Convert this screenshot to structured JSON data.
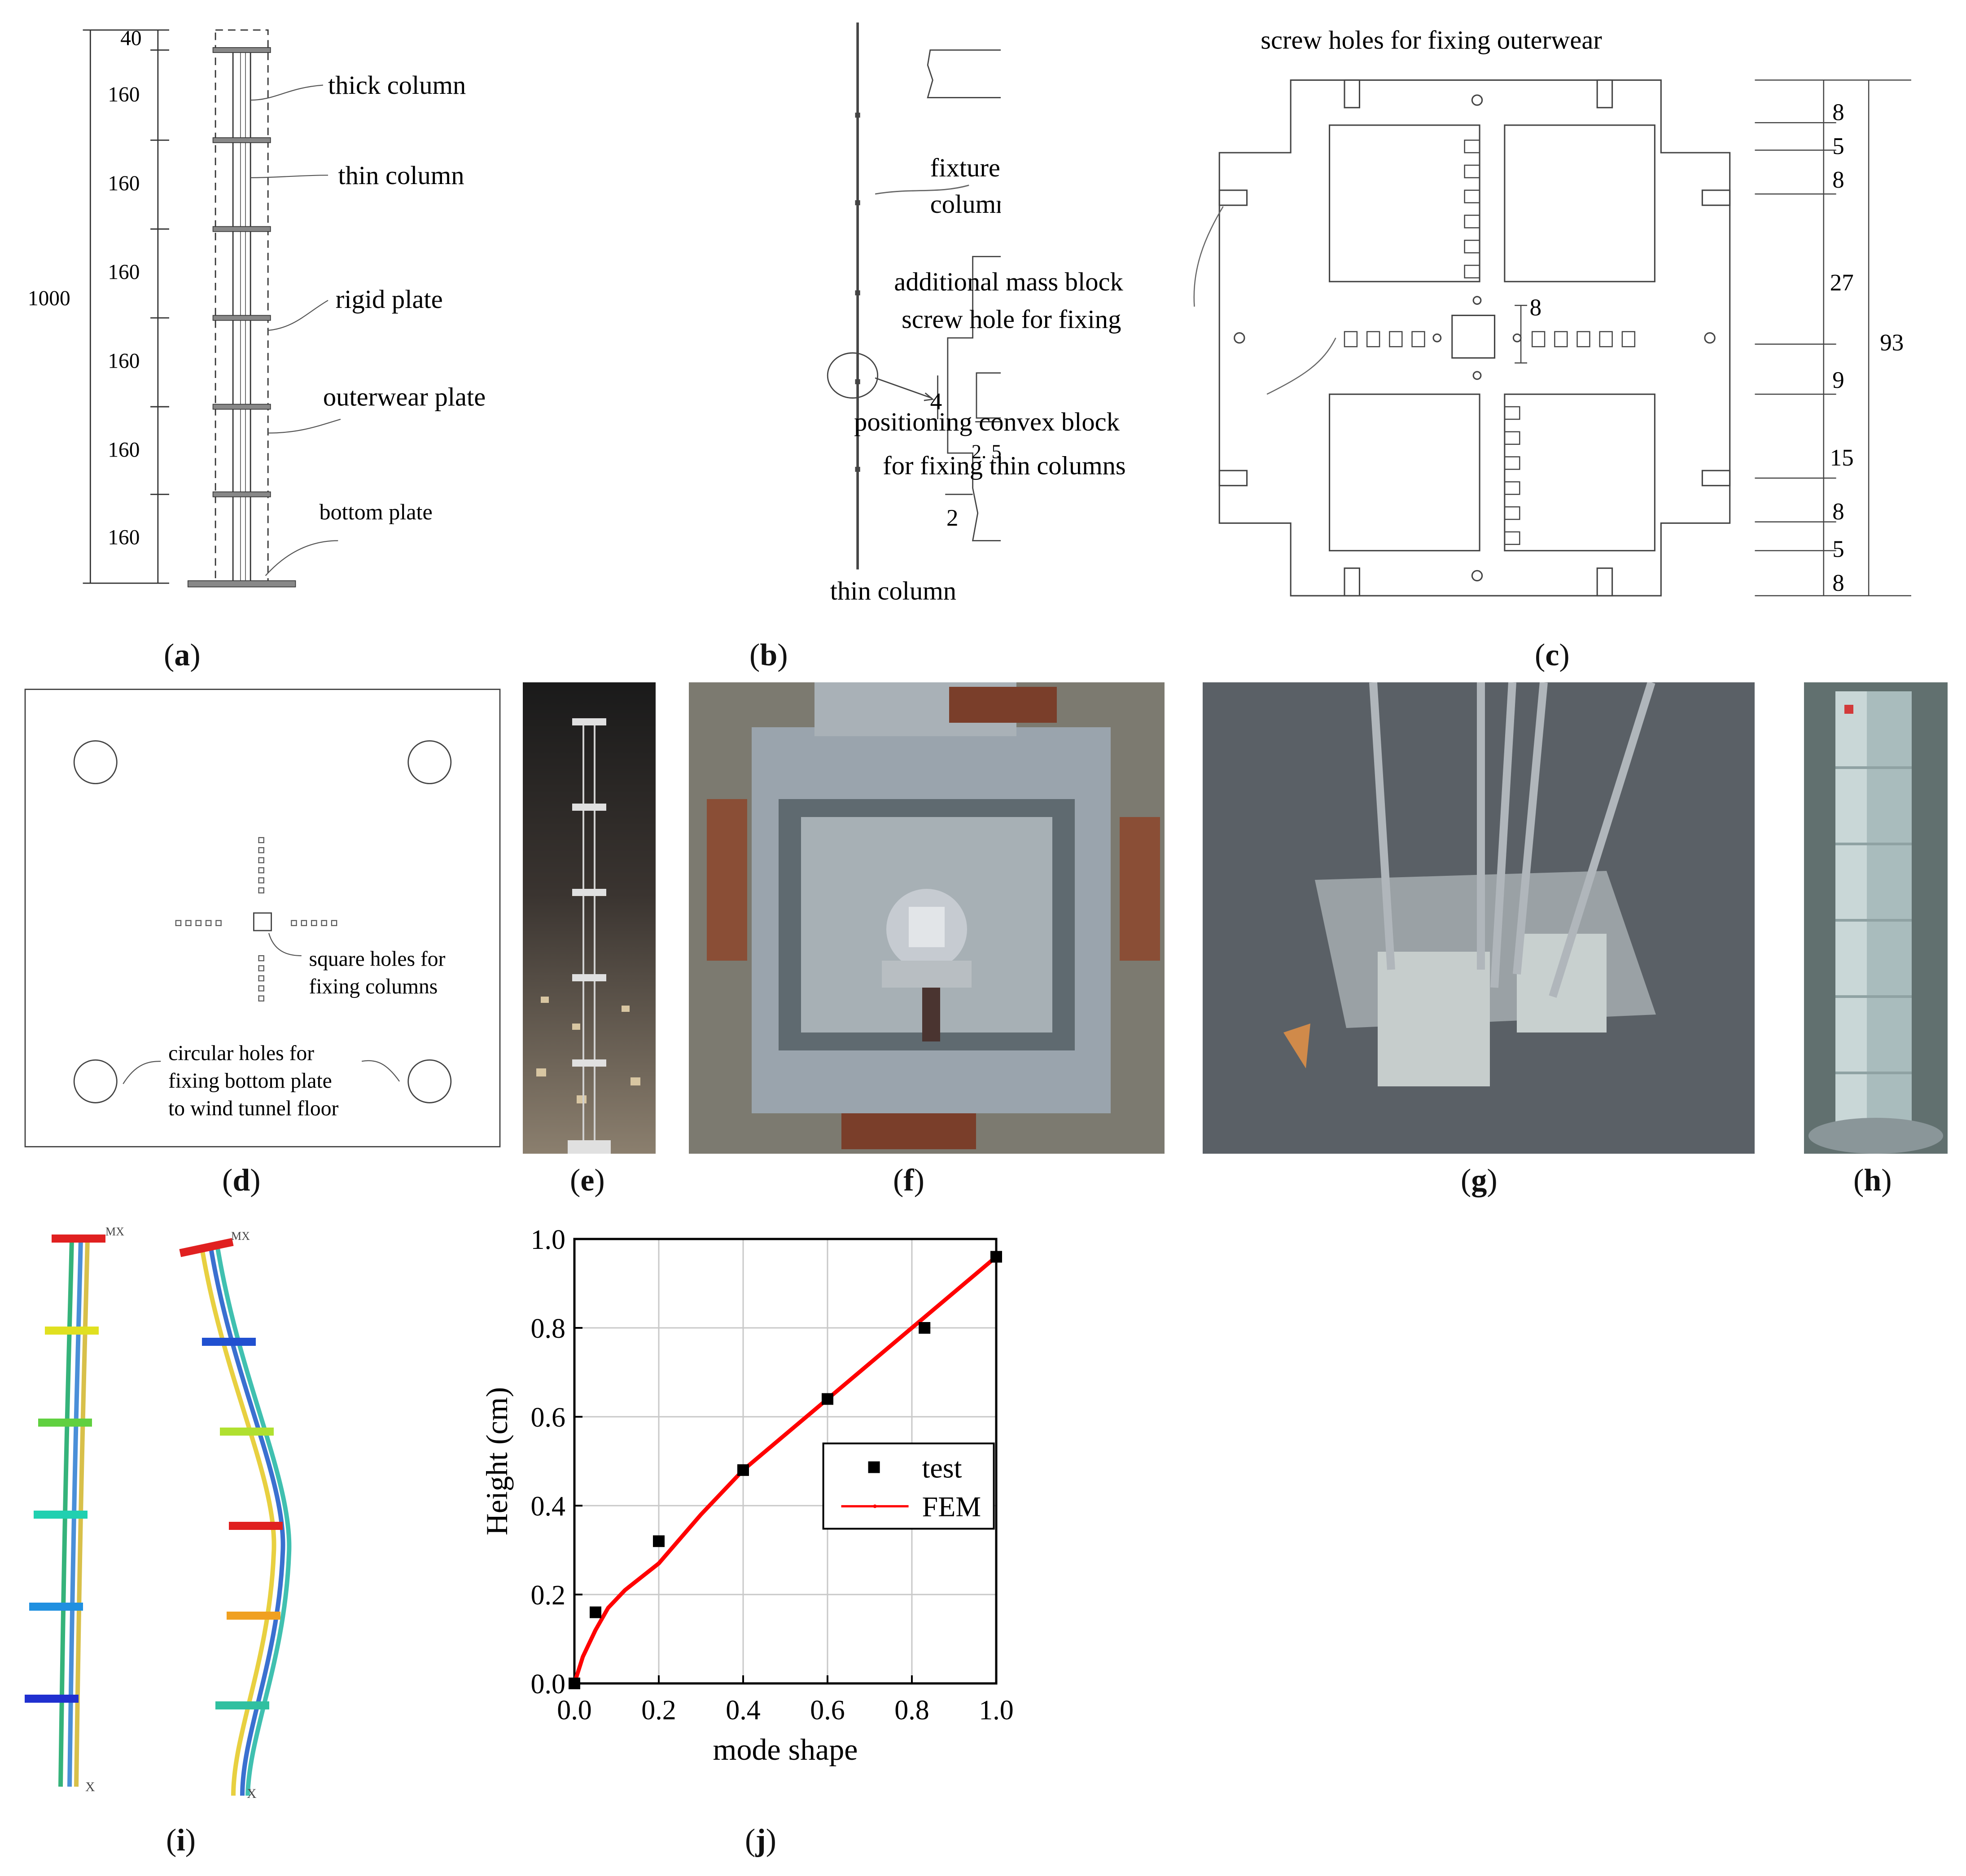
{
  "captions": {
    "a": "a",
    "b": "b",
    "c": "c",
    "d": "d",
    "e": "e",
    "f": "f",
    "g": "g",
    "h": "h",
    "i": "i",
    "j": "j"
  },
  "panel_a": {
    "dims": [
      "40",
      "160",
      "160",
      "160",
      "160",
      "160",
      "160"
    ],
    "total": "1000",
    "labels": {
      "thick_column": "thick column",
      "thin_column": "thin column",
      "rigid_plate": "rigid plate",
      "outerwear_plate": "outerwear plate",
      "bottom_plate": "bottom plate"
    }
  },
  "panel_b": {
    "fixture_line1": "fixture for fixing",
    "fixture_line2": "column to rigid plate",
    "dim_4": "4",
    "dim_25": "2. 5",
    "dim_2": "2",
    "thin_column": "thin column"
  },
  "panel_c": {
    "title": "screw holes for fixing outerwear",
    "mass_line1": "additional mass block",
    "mass_line2": "screw hole for fixing",
    "pos_line1": "positioning convex block",
    "pos_line2": "for fixing thin columns",
    "center_dim": "8",
    "right_dims": [
      "8",
      "5",
      "8",
      "27",
      "9",
      "15",
      "8",
      "5",
      "8"
    ],
    "total": "93"
  },
  "panel_d": {
    "square_line1": "square holes for",
    "square_line2": "fixing  columns",
    "circ_line1": "circular holes for",
    "circ_line2": "fixing  bottom plate",
    "circ_line3": "to wind tunnel floor"
  },
  "panel_i": {
    "mx1": "MX",
    "mx2": "MX",
    "x1": "X",
    "x2": "X"
  },
  "chart_data": {
    "type": "line",
    "xlabel": "mode shape",
    "ylabel": "Height (cm)",
    "xlim": [
      0.0,
      1.0
    ],
    "ylim": [
      0.0,
      1.0
    ],
    "xticks": [
      "0.0",
      "0.2",
      "0.4",
      "0.6",
      "0.8",
      "1.0"
    ],
    "yticks": [
      "0.0",
      "0.2",
      "0.4",
      "0.6",
      "0.8",
      "1.0"
    ],
    "grid": true,
    "legend_position": "center-right",
    "series": [
      {
        "name": "test",
        "marker": "square",
        "color": "#000000",
        "x": [
          0.0,
          0.05,
          0.2,
          0.4,
          0.6,
          0.83,
          1.0
        ],
        "y": [
          0.0,
          0.16,
          0.32,
          0.48,
          0.64,
          0.8,
          0.96
        ]
      },
      {
        "name": "FEM",
        "marker": "line",
        "color": "#ff0000",
        "x": [
          0.0,
          0.02,
          0.05,
          0.08,
          0.12,
          0.2,
          0.3,
          0.4,
          0.5,
          0.6,
          0.7,
          0.8,
          0.9,
          1.0
        ],
        "y": [
          0.0,
          0.06,
          0.12,
          0.17,
          0.21,
          0.27,
          0.38,
          0.48,
          0.56,
          0.64,
          0.72,
          0.8,
          0.88,
          0.96
        ]
      }
    ]
  }
}
